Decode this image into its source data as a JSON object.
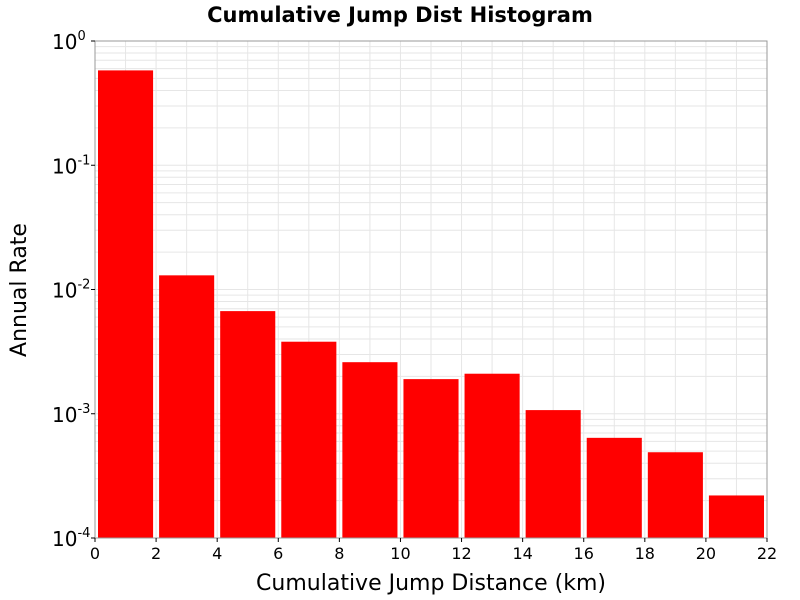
{
  "chart_data": {
    "type": "bar",
    "title": "Cumulative Jump Dist Histogram",
    "xlabel": "Cumulative Jump Distance (km)",
    "ylabel": "Annual Rate",
    "xlim": [
      0,
      22
    ],
    "ylim": [
      0.0001,
      1
    ],
    "yscale": "log",
    "grid": true,
    "bar_color": "#ff0000",
    "x_ticks": [
      "0",
      "2",
      "4",
      "6",
      "8",
      "10",
      "12",
      "14",
      "16",
      "18",
      "20",
      "22"
    ],
    "y_ticks": [
      {
        "base": "10",
        "exp": "-4"
      },
      {
        "base": "10",
        "exp": "-3"
      },
      {
        "base": "10",
        "exp": "-2"
      },
      {
        "base": "10",
        "exp": "-1"
      },
      {
        "base": "10",
        "exp": "0"
      }
    ],
    "bins": [
      {
        "x0": 0,
        "x1": 2,
        "value": 0.58
      },
      {
        "x0": 2,
        "x1": 4,
        "value": 0.013
      },
      {
        "x0": 4,
        "x1": 6,
        "value": 0.0067
      },
      {
        "x0": 6,
        "x1": 8,
        "value": 0.0038
      },
      {
        "x0": 8,
        "x1": 10,
        "value": 0.0026
      },
      {
        "x0": 10,
        "x1": 12,
        "value": 0.0019
      },
      {
        "x0": 12,
        "x1": 14,
        "value": 0.0021
      },
      {
        "x0": 14,
        "x1": 16,
        "value": 0.00107
      },
      {
        "x0": 16,
        "x1": 18,
        "value": 0.00064
      },
      {
        "x0": 18,
        "x1": 20,
        "value": 0.00049
      },
      {
        "x0": 20,
        "x1": 22,
        "value": 0.00022
      }
    ]
  }
}
